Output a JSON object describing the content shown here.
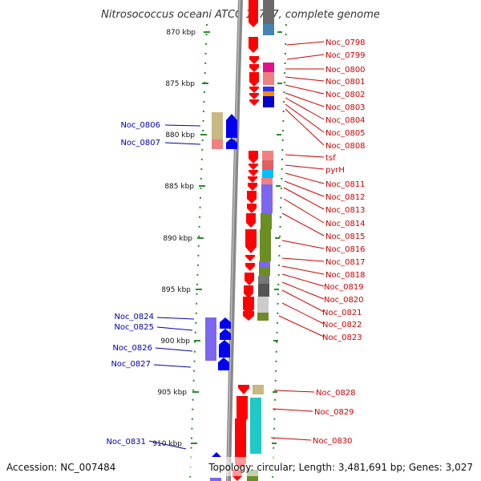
{
  "title": "Nitrosococcus oceani ATCC 19707, complete genome",
  "footer": {
    "accession": "Accession: NC_007484",
    "topology": "Topology: circular; Length: 3,481,691 bp; Genes: 3,027"
  },
  "scale": {
    "ticks": [
      "870 kbp",
      "875 kbp",
      "880 kbp",
      "885 kbp",
      "890 kbp",
      "895 kbp",
      "900 kbp",
      "905 kbp",
      "910 kbp"
    ]
  },
  "right_labels": [
    "Noc_0798",
    "Noc_0799",
    "Noc_0800",
    "Noc_0801",
    "Noc_0802",
    "Noc_0803",
    "Noc_0804",
    "Noc_0805",
    "Noc_0808",
    "tsf",
    "pyrH",
    "Noc_0811",
    "Noc_0812",
    "Noc_0813",
    "Noc_0814",
    "Noc_0815",
    "Noc_0816",
    "Noc_0817",
    "Noc_0818",
    "Noc_0819",
    "Noc_0820",
    "Noc_0821",
    "Noc_0822",
    "Noc_0823",
    "Noc_0828",
    "Noc_0829",
    "Noc_0830"
  ],
  "left_labels": [
    "Noc_0806",
    "Noc_0807",
    "Noc_0824",
    "Noc_0825",
    "Noc_0826",
    "Noc_0827",
    "Noc_0831"
  ],
  "colors": {
    "forward_strand": "#ff0000",
    "reverse_strand": "#0000ee",
    "right_label": "#d00000",
    "left_label": "#0000b0",
    "backbone": "#888888",
    "dots": "#2a8a2a"
  }
}
